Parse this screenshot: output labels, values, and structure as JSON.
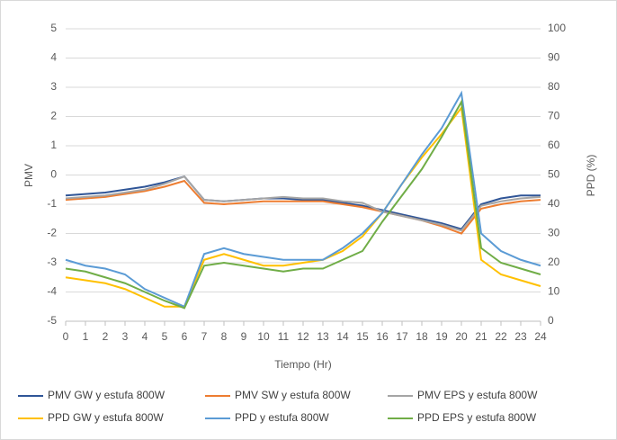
{
  "chart_data": {
    "type": "line",
    "x_label": "Tiempo (Hr)",
    "y_label": "PMV",
    "y2_label": "PPD (%)",
    "x": [
      0,
      1,
      2,
      3,
      4,
      5,
      6,
      7,
      8,
      9,
      10,
      11,
      12,
      13,
      14,
      15,
      16,
      17,
      18,
      19,
      20,
      21,
      22,
      23,
      24
    ],
    "xlim": [
      0,
      24
    ],
    "xticks": [
      0,
      1,
      2,
      3,
      4,
      5,
      6,
      7,
      8,
      9,
      10,
      11,
      12,
      13,
      14,
      15,
      16,
      17,
      18,
      19,
      20,
      21,
      22,
      23,
      24
    ],
    "ylim": [
      -5,
      5
    ],
    "yticks": [
      -5,
      -4,
      -3,
      -2,
      -1,
      0,
      1,
      2,
      3,
      4,
      5
    ],
    "y2lim": [
      0,
      100
    ],
    "y2ticks": [
      0,
      10,
      20,
      30,
      40,
      50,
      60,
      70,
      80,
      90,
      100
    ],
    "grid": true,
    "legend": "bottom",
    "series": [
      {
        "name": "PMV GW y estufa 800W",
        "color": "#2f5597",
        "values": [
          -0.7,
          -0.65,
          -0.6,
          -0.5,
          -0.4,
          -0.25,
          -0.05,
          -0.85,
          -0.9,
          -0.85,
          -0.8,
          -0.8,
          -0.85,
          -0.85,
          -0.95,
          -1.05,
          -1.2,
          -1.35,
          -1.5,
          -1.65,
          -1.85,
          -1.0,
          -0.8,
          -0.7,
          -0.7
        ]
      },
      {
        "name": "PMV SW y estufa 800W",
        "color": "#ed7d31",
        "values": [
          -0.85,
          -0.8,
          -0.75,
          -0.65,
          -0.55,
          -0.4,
          -0.2,
          -0.95,
          -1.0,
          -0.95,
          -0.9,
          -0.9,
          -0.9,
          -0.9,
          -1.0,
          -1.1,
          -1.25,
          -1.4,
          -1.55,
          -1.75,
          -2.0,
          -1.15,
          -1.0,
          -0.9,
          -0.85
        ]
      },
      {
        "name": "PMV EPS y estufa 800W",
        "color": "#a5a5a5",
        "values": [
          -0.8,
          -0.75,
          -0.7,
          -0.6,
          -0.5,
          -0.3,
          -0.05,
          -0.85,
          -0.9,
          -0.85,
          -0.8,
          -0.75,
          -0.8,
          -0.8,
          -0.9,
          -0.95,
          -1.25,
          -1.4,
          -1.55,
          -1.7,
          -1.9,
          -1.05,
          -0.9,
          -0.8,
          -0.75
        ]
      },
      {
        "name": "PPD GW y estufa 800W",
        "color": "#ffc000",
        "axis": "y2",
        "values": [
          15,
          14,
          13,
          11,
          8,
          5,
          5,
          21,
          23,
          21,
          19,
          19,
          20,
          21,
          24,
          29,
          37,
          47,
          56,
          64,
          73,
          21,
          16,
          14,
          12
        ]
      },
      {
        "name": "PPD y estufa 800W",
        "color": "#5b9bd5",
        "axis": "y2",
        "values": [
          21,
          19,
          18,
          16,
          11,
          8,
          5,
          23,
          25,
          23,
          22,
          21,
          21,
          21,
          25,
          30,
          37,
          47,
          57,
          66,
          78,
          30,
          24,
          21,
          19
        ]
      },
      {
        "name": "PPD EPS y estufa 800W",
        "color": "#70ad47",
        "axis": "y2",
        "values": [
          18,
          17,
          15,
          13,
          10,
          7,
          4.5,
          19,
          20,
          19,
          18,
          17,
          18,
          18,
          21,
          24,
          34,
          43,
          52,
          63,
          75,
          25,
          20,
          18,
          16
        ]
      }
    ]
  }
}
